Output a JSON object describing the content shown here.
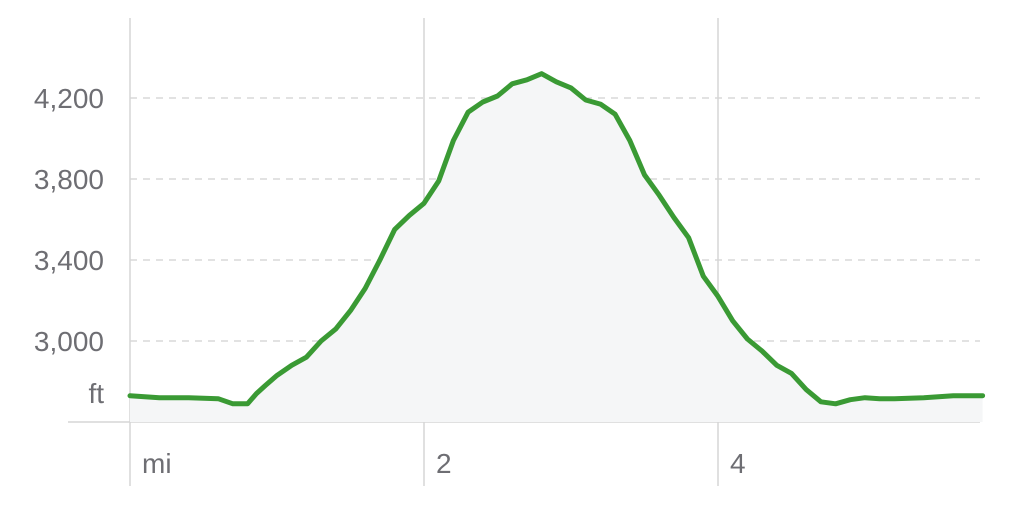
{
  "chart_data": {
    "type": "area",
    "title": "",
    "xlabel": "",
    "ylabel": "",
    "x_unit": "mi",
    "y_unit": "ft",
    "xlim": [
      0,
      5.8
    ],
    "ylim": [
      2600,
      4600
    ],
    "x_ticks": [
      {
        "value": 2,
        "label": "2"
      },
      {
        "value": 4,
        "label": "4"
      }
    ],
    "y_ticks": [
      {
        "value": 3000,
        "label": "3,000"
      },
      {
        "value": 3400,
        "label": "3,400"
      },
      {
        "value": 3800,
        "label": "3,800"
      },
      {
        "value": 4200,
        "label": "4,200"
      }
    ],
    "grid": true,
    "colors": {
      "line": "#3a9a34",
      "fill": "#f5f6f7",
      "grid": "#d8d8d8",
      "axis_line": "#d6d6d6",
      "label": "#6e6e73"
    },
    "series": [
      {
        "x": [
          0.0,
          0.2,
          0.4,
          0.6,
          0.7,
          0.8,
          0.86,
          0.92,
          1.0,
          1.1,
          1.2,
          1.3,
          1.4,
          1.5,
          1.6,
          1.7,
          1.8,
          1.9,
          2.0,
          2.1,
          2.2,
          2.3,
          2.4,
          2.5,
          2.6,
          2.7,
          2.8,
          2.9,
          3.0,
          3.1,
          3.2,
          3.3,
          3.4,
          3.5,
          3.6,
          3.7,
          3.8,
          3.9,
          4.0,
          4.1,
          4.2,
          4.3,
          4.4,
          4.5,
          4.6,
          4.7,
          4.8,
          4.9,
          5.0,
          5.1,
          5.2,
          5.4,
          5.6,
          5.8
        ],
        "y": [
          2730,
          2720,
          2720,
          2715,
          2690,
          2690,
          2740,
          2780,
          2830,
          2880,
          2920,
          3000,
          3060,
          3150,
          3260,
          3400,
          3550,
          3620,
          3680,
          3790,
          3990,
          4130,
          4180,
          4210,
          4270,
          4290,
          4320,
          4280,
          4250,
          4190,
          4170,
          4120,
          3990,
          3820,
          3720,
          3610,
          3510,
          3320,
          3220,
          3100,
          3010,
          2950,
          2880,
          2840,
          2760,
          2700,
          2690,
          2710,
          2720,
          2715,
          2715,
          2720,
          2730,
          2730
        ]
      }
    ]
  }
}
